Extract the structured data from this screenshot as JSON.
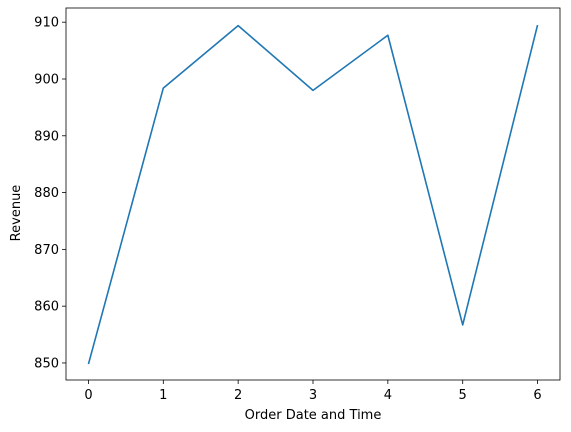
{
  "chart_data": {
    "type": "line",
    "title": "",
    "xlabel": "Order Date and Time",
    "ylabel": "Revenue",
    "x": [
      0,
      1,
      2,
      3,
      4,
      5,
      6
    ],
    "series": [
      {
        "values": [
          849.8,
          898.4,
          909.4,
          898.0,
          907.7,
          856.7,
          909.5
        ],
        "color": "#1f77b4"
      }
    ],
    "xticks": [
      0,
      1,
      2,
      3,
      4,
      5,
      6
    ],
    "yticks": [
      850,
      860,
      870,
      880,
      890,
      900,
      910
    ],
    "xlim": [
      -0.3,
      6.3
    ],
    "ylim": [
      847.0,
      912.5
    ],
    "grid": false,
    "legend": "none"
  }
}
